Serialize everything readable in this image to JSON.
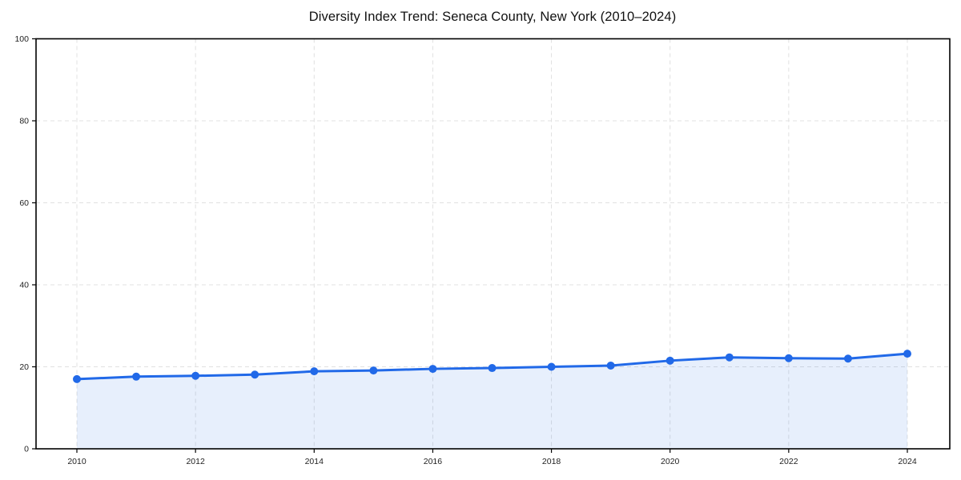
{
  "title": "Diversity Index Trend: Seneca County, New York (2010–2024)",
  "chart_data": {
    "type": "line",
    "title": "Diversity Index Trend: Seneca County, New York (2010–2024)",
    "xlabel": "",
    "ylabel": "",
    "x": [
      2010,
      2011,
      2012,
      2013,
      2014,
      2015,
      2016,
      2017,
      2018,
      2019,
      2020,
      2021,
      2022,
      2023,
      2024
    ],
    "series": [
      {
        "name": "Diversity Index",
        "values": [
          17.0,
          17.6,
          17.8,
          18.1,
          18.9,
          19.1,
          19.5,
          19.7,
          20.0,
          20.3,
          21.5,
          22.3,
          22.1,
          22.0,
          23.2
        ]
      }
    ],
    "xlim": [
      2010,
      2024
    ],
    "ylim": [
      0,
      100
    ],
    "xticks": [
      2010,
      2012,
      2014,
      2016,
      2018,
      2020,
      2022,
      2024
    ],
    "yticks": [
      0,
      20,
      40,
      60,
      80,
      100
    ],
    "grid": true,
    "grid_style": "dashed",
    "legend_position": "none",
    "area_fill": true,
    "markers": true,
    "colors": {
      "line": "#2169e8",
      "marker": "#2169e8",
      "fill": "#2169e8",
      "fill_opacity": "0.11",
      "grid": "#e0e0e0",
      "axis": "#000000",
      "tick_label": "#222222",
      "title": "#111111",
      "background": "#ffffff"
    }
  }
}
